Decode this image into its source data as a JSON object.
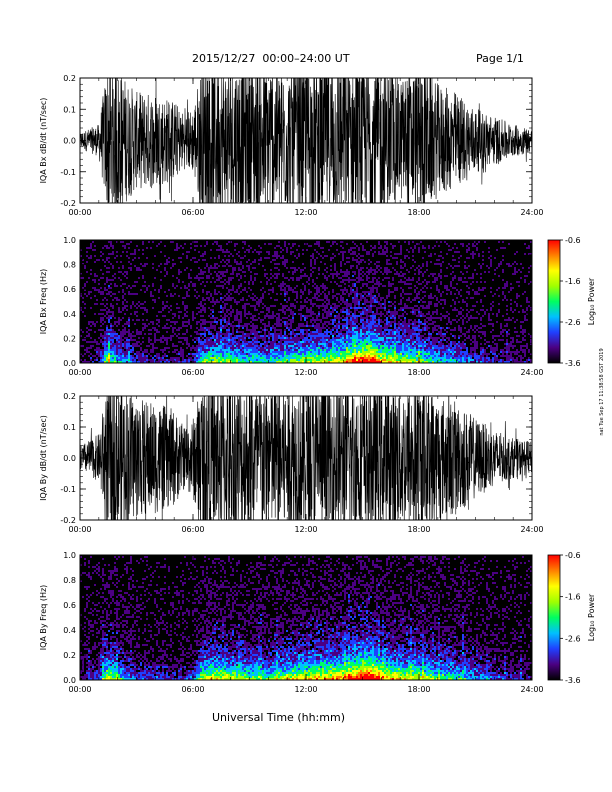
{
  "header": {
    "title": "2015/12/27  00:00–24:00 UT",
    "page": "Page 1/1"
  },
  "footer": {
    "xlabel": "Universal Time (hh:mm)",
    "side_note": "nat Tue Sep 17 11:38:58 GST 2019"
  },
  "chart_data": [
    {
      "type": "line",
      "ylabel": "IQA Bx dB/dt (nT/sec)",
      "x_unit": "hours UT",
      "xlim": [
        0,
        24
      ],
      "xticks": [
        "00:00",
        "06:00",
        "12:00",
        "18:00",
        "24:00"
      ],
      "ylim": [
        -0.2,
        0.2
      ],
      "yticks": [
        "0.2",
        "0.1",
        "0.0",
        "-0.1",
        "-0.2"
      ],
      "grid": false,
      "envelope": {
        "hours": [
          0,
          1,
          1.5,
          2,
          3,
          4,
          5,
          5.5,
          6,
          6.5,
          7,
          8,
          9,
          10,
          11,
          12,
          13,
          14,
          15,
          16,
          17,
          18,
          19,
          20,
          21,
          22,
          23,
          24
        ],
        "amplitude": [
          0.02,
          0.04,
          0.2,
          0.18,
          0.12,
          0.12,
          0.1,
          0.07,
          0.08,
          0.2,
          0.2,
          0.2,
          0.2,
          0.2,
          0.18,
          0.2,
          0.2,
          0.2,
          0.2,
          0.2,
          0.15,
          0.2,
          0.14,
          0.12,
          0.08,
          0.06,
          0.04,
          0.03
        ]
      }
    },
    {
      "type": "heatmap",
      "ylabel": "IQA Bx Freq (Hz)",
      "xlim": [
        0,
        24
      ],
      "xticks": [
        "00:00",
        "06:00",
        "12:00",
        "18:00",
        "24:00"
      ],
      "ylim": [
        0,
        1.0
      ],
      "yticks": [
        "1.0",
        "0.8",
        "0.6",
        "0.4",
        "0.2",
        "0.0"
      ],
      "colorbar": {
        "label": "Log₁₀ Power",
        "min": -3.6,
        "max": -0.6,
        "ticks": [
          "-0.6",
          "-1.6",
          "-2.6",
          "-3.6"
        ],
        "colors": [
          "#000000",
          "#4b0082",
          "#2040ff",
          "#00c0ff",
          "#00ff60",
          "#a0ff00",
          "#ffff00",
          "#ff8000",
          "#ff0000"
        ]
      },
      "activity": {
        "hours": [
          0,
          1,
          1.5,
          2,
          3,
          4,
          5,
          6,
          6.5,
          7,
          8,
          9,
          10,
          11,
          12,
          13,
          14,
          15,
          15.5,
          16,
          17,
          18,
          19,
          20,
          21,
          22,
          23,
          24
        ],
        "level": [
          0.05,
          0.15,
          0.55,
          0.35,
          0.15,
          0.15,
          0.12,
          0.15,
          0.45,
          0.5,
          0.45,
          0.4,
          0.35,
          0.45,
          0.5,
          0.55,
          0.6,
          0.85,
          0.9,
          0.65,
          0.55,
          0.5,
          0.35,
          0.3,
          0.2,
          0.15,
          0.1,
          0.08
        ]
      }
    },
    {
      "type": "line",
      "ylabel": "IQA By dB/dt (nT/sec)",
      "x_unit": "hours UT",
      "xlim": [
        0,
        24
      ],
      "xticks": [
        "00:00",
        "06:00",
        "12:00",
        "18:00",
        "24:00"
      ],
      "ylim": [
        -0.2,
        0.2
      ],
      "yticks": [
        "0.2",
        "0.1",
        "0.0",
        "-0.1",
        "-0.2"
      ],
      "grid": false,
      "envelope": {
        "hours": [
          0,
          1,
          1.5,
          2,
          3,
          4,
          5,
          5.5,
          6,
          6.5,
          7,
          8,
          9,
          10,
          11,
          12,
          13,
          14,
          15,
          16,
          17,
          18,
          19,
          20,
          21,
          22,
          23,
          24
        ],
        "amplitude": [
          0.03,
          0.06,
          0.2,
          0.2,
          0.15,
          0.14,
          0.12,
          0.08,
          0.1,
          0.2,
          0.2,
          0.2,
          0.2,
          0.2,
          0.2,
          0.2,
          0.2,
          0.2,
          0.2,
          0.2,
          0.18,
          0.2,
          0.16,
          0.14,
          0.1,
          0.07,
          0.05,
          0.04
        ]
      }
    },
    {
      "type": "heatmap",
      "ylabel": "IQA By Freq (Hz)",
      "xlim": [
        0,
        24
      ],
      "xticks": [
        "00:00",
        "06:00",
        "12:00",
        "18:00",
        "24:00"
      ],
      "ylim": [
        0,
        1.0
      ],
      "yticks": [
        "1.0",
        "0.8",
        "0.6",
        "0.4",
        "0.2",
        "0.0"
      ],
      "colorbar": {
        "label": "Log₁₀ Power",
        "min": -3.6,
        "max": -0.6,
        "ticks": [
          "-0.6",
          "-1.6",
          "-2.6",
          "-3.6"
        ],
        "colors": [
          "#000000",
          "#4b0082",
          "#2040ff",
          "#00c0ff",
          "#00ff60",
          "#a0ff00",
          "#ffff00",
          "#ff8000",
          "#ff0000"
        ]
      },
      "activity": {
        "hours": [
          0,
          1,
          1.5,
          2,
          3,
          4,
          5,
          6,
          6.5,
          7,
          8,
          9,
          10,
          11,
          12,
          13,
          14,
          15,
          15.5,
          16,
          17,
          18,
          19,
          20,
          21,
          22,
          23,
          24
        ],
        "level": [
          0.08,
          0.2,
          0.6,
          0.4,
          0.2,
          0.2,
          0.15,
          0.2,
          0.55,
          0.6,
          0.55,
          0.45,
          0.4,
          0.55,
          0.6,
          0.65,
          0.7,
          0.9,
          0.95,
          0.7,
          0.6,
          0.55,
          0.45,
          0.4,
          0.3,
          0.2,
          0.15,
          0.1
        ]
      }
    }
  ]
}
